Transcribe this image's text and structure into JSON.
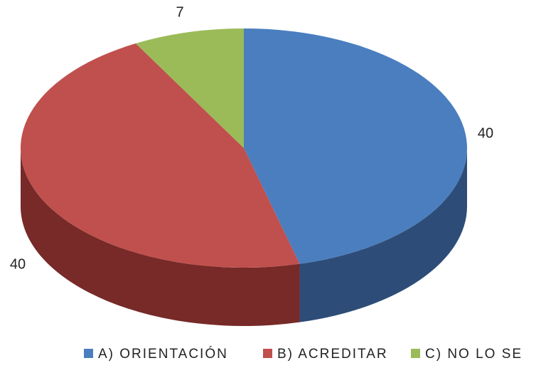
{
  "chart_data": {
    "type": "pie",
    "categories": [
      "A) ORIENTACIÓN",
      "B) ACREDITAR",
      "C) NO LO SE"
    ],
    "values": [
      40,
      40,
      7
    ],
    "colors": [
      "#4a7ebf",
      "#c0504d",
      "#9bbb59"
    ],
    "side_colors": [
      "#2d4d78",
      "#772a28",
      "#5e7335"
    ],
    "legend": "bottom"
  }
}
